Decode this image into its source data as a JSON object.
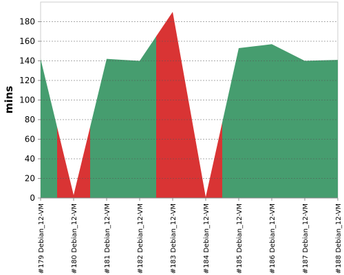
{
  "chart_data": {
    "type": "area",
    "y_label": "mins",
    "categories": [
      "#179 Debian_12-VM",
      "#180 Debian_12-VM",
      "#181 Debian_12-VM",
      "#182 Debian_12-VM",
      "#183 Debian_12-VM",
      "#184 Debian_12-VM",
      "#185 Debian_12-VM",
      "#186 Debian_12-VM",
      "#187 Debian_12-VM",
      "#188 Debian_12-VM"
    ],
    "values": [
      142,
      3,
      142,
      140,
      190,
      1,
      153,
      157,
      140,
      141
    ],
    "colors": [
      "#469d6f",
      "#d93434",
      "#469d6f",
      "#469d6f",
      "#d93434",
      "#d93434",
      "#469d6f",
      "#469d6f",
      "#469d6f",
      "#469d6f"
    ],
    "ylim": [
      0,
      200
    ],
    "yticks": [
      0,
      20,
      40,
      60,
      80,
      100,
      120,
      140,
      160,
      180
    ],
    "grid": true
  }
}
